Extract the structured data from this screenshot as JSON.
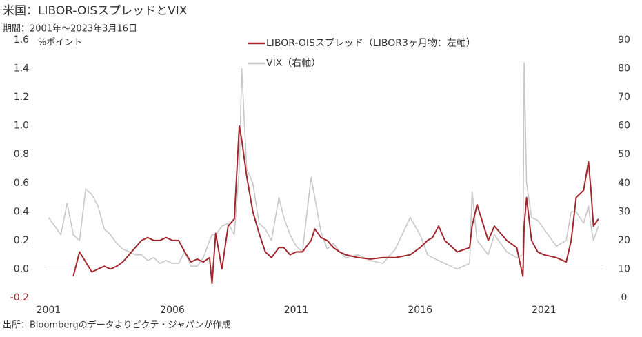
{
  "chart_data": {
    "type": "line",
    "title": "米国：LIBOR-OISスプレッドとVIX",
    "subtitle": "期間：2001年～2023年3月16日",
    "y_label": "%ポイント",
    "source": "出所：Bloombergのデータよりピクテ・ジャパンが作成",
    "x": [
      2001.0,
      2001.25,
      2001.5,
      2001.75,
      2002.0,
      2002.25,
      2002.5,
      2002.75,
      2003.0,
      2003.25,
      2003.5,
      2003.75,
      2004.0,
      2004.25,
      2004.5,
      2004.75,
      2005.0,
      2005.25,
      2005.5,
      2005.75,
      2006.0,
      2006.25,
      2006.5,
      2006.75,
      2007.0,
      2007.25,
      2007.5,
      2007.6,
      2007.75,
      2008.0,
      2008.25,
      2008.5,
      2008.7,
      2008.8,
      2009.0,
      2009.25,
      2009.5,
      2009.75,
      2010.0,
      2010.3,
      2010.5,
      2010.75,
      2011.0,
      2011.25,
      2011.6,
      2011.75,
      2012.0,
      2012.25,
      2012.5,
      2012.75,
      2013.0,
      2013.5,
      2014.0,
      2014.5,
      2015.0,
      2015.6,
      2016.0,
      2016.3,
      2016.5,
      2016.75,
      2017.0,
      2017.5,
      2018.0,
      2018.1,
      2018.3,
      2018.75,
      2019.0,
      2019.5,
      2019.9,
      2020.15,
      2020.2,
      2020.3,
      2020.5,
      2020.75,
      2021.0,
      2021.5,
      2021.9,
      2022.1,
      2022.3,
      2022.6,
      2022.8,
      2022.9,
      2023.0,
      2023.2
    ],
    "series": [
      {
        "name": "LIBOR-OISスプレッド（LIBOR3ヶ月物：左軸）",
        "color": "#a0272d",
        "values": [
          null,
          null,
          null,
          null,
          -0.05,
          0.12,
          0.05,
          -0.02,
          0.0,
          0.02,
          0.0,
          0.02,
          0.05,
          0.1,
          0.15,
          0.2,
          0.22,
          0.2,
          0.2,
          0.22,
          0.2,
          0.2,
          0.12,
          0.05,
          0.07,
          0.05,
          0.08,
          -0.1,
          0.25,
          0.0,
          0.3,
          0.35,
          1.0,
          0.9,
          0.65,
          0.4,
          0.25,
          0.12,
          0.08,
          0.15,
          0.15,
          0.1,
          0.12,
          0.12,
          0.2,
          0.28,
          0.22,
          0.2,
          0.15,
          0.12,
          0.1,
          0.08,
          0.07,
          0.08,
          0.08,
          0.1,
          0.15,
          0.2,
          0.22,
          0.3,
          0.2,
          0.12,
          0.15,
          0.3,
          0.45,
          0.2,
          0.3,
          0.2,
          0.15,
          -0.05,
          0.3,
          0.5,
          0.2,
          0.12,
          0.1,
          0.08,
          0.05,
          0.2,
          0.5,
          0.55,
          0.75,
          0.55,
          0.3,
          0.35
        ]
      },
      {
        "name": "VIX（右軸）",
        "color": "#c8c8c8",
        "axis": "y2",
        "values": [
          28,
          25,
          22,
          33,
          22,
          20,
          38,
          36,
          32,
          24,
          22,
          19,
          17,
          16,
          15,
          15,
          13,
          14,
          12,
          13,
          12,
          12,
          16,
          11,
          11,
          14,
          20,
          22,
          22,
          25,
          26,
          22,
          45,
          80,
          45,
          40,
          26,
          24,
          20,
          35,
          28,
          22,
          18,
          16,
          42,
          35,
          23,
          17,
          19,
          16,
          14,
          15,
          13,
          12,
          17,
          28,
          22,
          15,
          14,
          13,
          12,
          10,
          12,
          37,
          20,
          15,
          22,
          16,
          14,
          15,
          82,
          40,
          28,
          27,
          24,
          18,
          20,
          30,
          30,
          26,
          32,
          25,
          20,
          25
        ]
      }
    ],
    "xlim": [
      2000.85,
      2023.4
    ],
    "xticks": [
      2001,
      2006,
      2011,
      2016,
      2021
    ],
    "ylim": [
      -0.2,
      1.6
    ],
    "yticks": [
      -0.2,
      {
        "value": 0,
        "label": "0.0"
      },
      0.2,
      0.4,
      0.6,
      0.8,
      {
        "value": 1,
        "label": "1.0"
      },
      1.2,
      1.4,
      1.6
    ],
    "y2lim": [
      0,
      90
    ],
    "y2ticks": [
      0,
      10,
      20,
      30,
      40,
      50,
      60,
      70,
      80,
      90
    ]
  }
}
